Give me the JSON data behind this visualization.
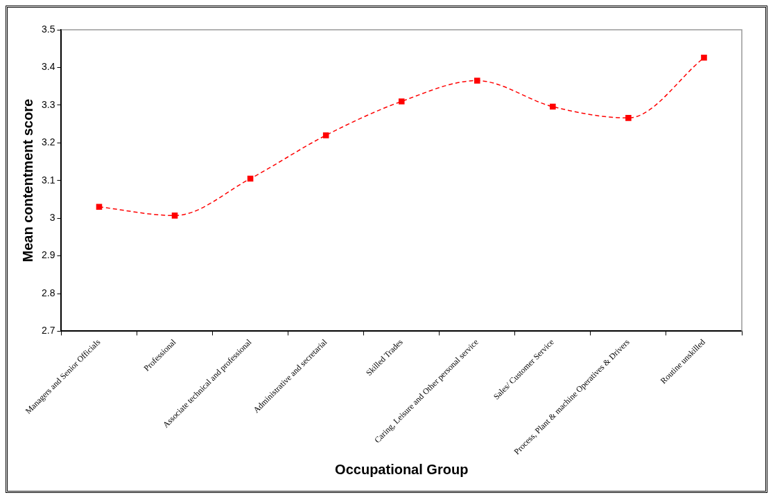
{
  "chart_data": {
    "type": "line",
    "xlabel": "Occupational Group",
    "ylabel": "Mean contentment score",
    "categories": [
      "Managers and Senior Officials",
      "Professional",
      "Associate technical and professional",
      "Administrative and secretarial",
      "Skilled Trades",
      "Caring, Leisure and Other personal service",
      "Sales/ Customer Service",
      "Process, Plant & machine Operatives & Drivers",
      "Routine unskilled"
    ],
    "series": [
      {
        "color": "#ff0000",
        "values": [
          3.03,
          3.007,
          3.105,
          3.22,
          3.31,
          3.365,
          3.296,
          3.266,
          3.426
        ]
      }
    ],
    "ylim": [
      2.7,
      3.5
    ],
    "yticks": [
      2.7,
      2.8,
      2.9,
      3,
      3.1,
      3.2,
      3.3,
      3.4,
      3.5
    ],
    "marker": "square",
    "line_style": "dashed"
  }
}
